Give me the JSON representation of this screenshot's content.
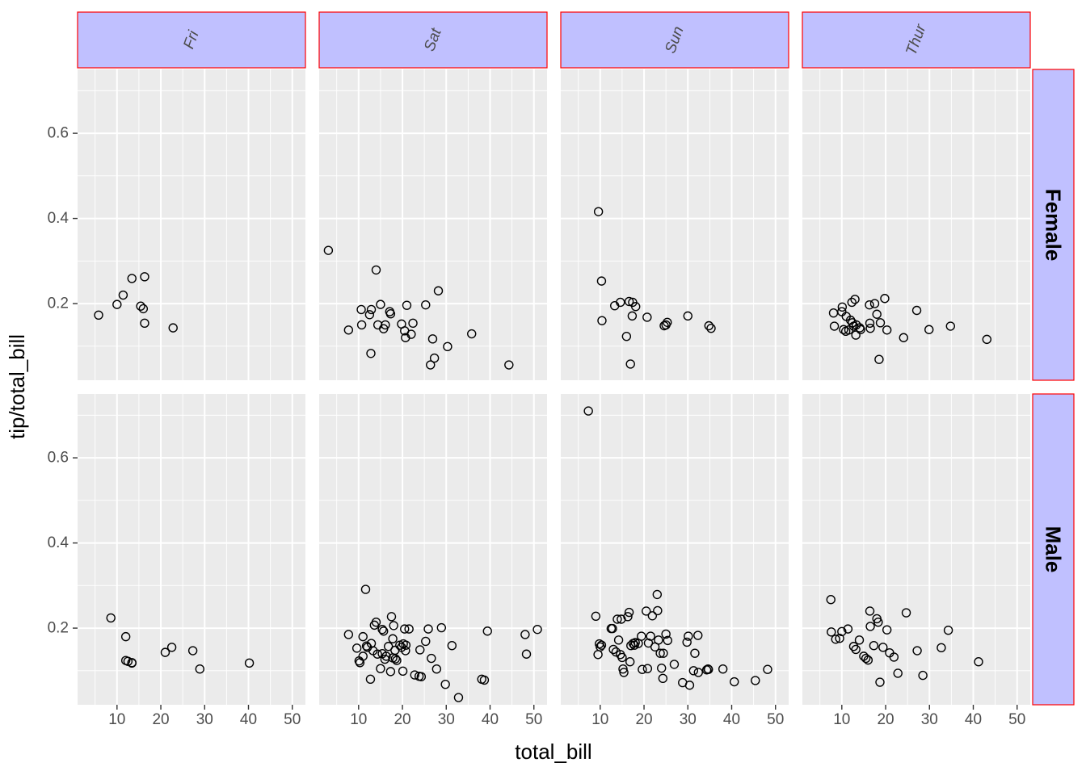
{
  "chart_data": {
    "type": "scatter",
    "xlabel": "total_bill",
    "ylabel": "tip/total_bill",
    "xlim": [
      1,
      53
    ],
    "ylim": [
      0.02,
      0.75
    ],
    "x_ticks": [
      10,
      20,
      30,
      40,
      50
    ],
    "y_ticks": [
      0.2,
      0.4,
      0.6
    ],
    "x_tick_labels": [
      "10",
      "20",
      "30",
      "40",
      "50"
    ],
    "y_tick_labels": [
      "0.2",
      "0.4",
      "0.6"
    ],
    "grid": true,
    "col_facets": [
      "Fri",
      "Sat",
      "Sun",
      "Thur"
    ],
    "row_facets": [
      "Female",
      "Male"
    ],
    "colors": {
      "panel_bg": "#ebebeb",
      "grid": "#ffffff",
      "strip_fill": "#c0c0ff",
      "strip_border": "#ff0000",
      "point_stroke": "#000000",
      "text": "#4d4d4d",
      "title_text": "#000000"
    },
    "panels": [
      {
        "col": "Fri",
        "row": "Female",
        "points": [
          [
            5.8,
            0.173
          ],
          [
            10.0,
            0.198
          ],
          [
            11.4,
            0.22
          ],
          [
            13.4,
            0.259
          ],
          [
            15.4,
            0.194
          ],
          [
            16.0,
            0.188
          ],
          [
            16.3,
            0.263
          ],
          [
            16.3,
            0.154
          ],
          [
            22.8,
            0.143
          ]
        ]
      },
      {
        "col": "Sat",
        "row": "Female",
        "points": [
          [
            3.1,
            0.325
          ],
          [
            7.7,
            0.138
          ],
          [
            10.6,
            0.186
          ],
          [
            10.7,
            0.15
          ],
          [
            12.5,
            0.174
          ],
          [
            12.9,
            0.186
          ],
          [
            12.8,
            0.083
          ],
          [
            14.0,
            0.279
          ],
          [
            14.4,
            0.15
          ],
          [
            15.0,
            0.198
          ],
          [
            15.7,
            0.141
          ],
          [
            16.1,
            0.15
          ],
          [
            17.1,
            0.181
          ],
          [
            17.3,
            0.176
          ],
          [
            19.8,
            0.152
          ],
          [
            20.5,
            0.136
          ],
          [
            20.7,
            0.12
          ],
          [
            21.0,
            0.196
          ],
          [
            22.0,
            0.128
          ],
          [
            22.4,
            0.154
          ],
          [
            25.3,
            0.197
          ],
          [
            26.4,
            0.056
          ],
          [
            26.9,
            0.117
          ],
          [
            27.3,
            0.072
          ],
          [
            28.2,
            0.23
          ],
          [
            30.3,
            0.099
          ],
          [
            35.8,
            0.129
          ],
          [
            44.3,
            0.056
          ]
        ]
      },
      {
        "col": "Sun",
        "row": "Female",
        "points": [
          [
            9.6,
            0.416
          ],
          [
            10.3,
            0.253
          ],
          [
            10.4,
            0.16
          ],
          [
            13.3,
            0.195
          ],
          [
            14.6,
            0.203
          ],
          [
            16.0,
            0.123
          ],
          [
            16.6,
            0.205
          ],
          [
            16.9,
            0.058
          ],
          [
            17.3,
            0.171
          ],
          [
            17.4,
            0.203
          ],
          [
            18.1,
            0.193
          ],
          [
            20.7,
            0.168
          ],
          [
            24.6,
            0.148
          ],
          [
            25.0,
            0.15
          ],
          [
            25.3,
            0.156
          ],
          [
            30.0,
            0.171
          ],
          [
            34.8,
            0.148
          ],
          [
            35.3,
            0.142
          ]
        ]
      },
      {
        "col": "Thur",
        "row": "Female",
        "points": [
          [
            8.1,
            0.178
          ],
          [
            8.3,
            0.147
          ],
          [
            10.0,
            0.181
          ],
          [
            10.1,
            0.192
          ],
          [
            10.4,
            0.139
          ],
          [
            10.9,
            0.135
          ],
          [
            11.0,
            0.17
          ],
          [
            11.6,
            0.138
          ],
          [
            12.0,
            0.161
          ],
          [
            12.3,
            0.203
          ],
          [
            12.4,
            0.155
          ],
          [
            12.7,
            0.147
          ],
          [
            13.0,
            0.21
          ],
          [
            13.2,
            0.126
          ],
          [
            13.3,
            0.15
          ],
          [
            14.1,
            0.143
          ],
          [
            14.3,
            0.139
          ],
          [
            16.3,
            0.197
          ],
          [
            16.4,
            0.154
          ],
          [
            16.5,
            0.142
          ],
          [
            17.5,
            0.2
          ],
          [
            18.0,
            0.175
          ],
          [
            18.5,
            0.069
          ],
          [
            18.8,
            0.155
          ],
          [
            19.8,
            0.212
          ],
          [
            20.3,
            0.138
          ],
          [
            24.1,
            0.12
          ],
          [
            27.1,
            0.184
          ],
          [
            29.9,
            0.139
          ],
          [
            34.8,
            0.147
          ],
          [
            43.1,
            0.116
          ]
        ]
      },
      {
        "col": "Fri",
        "row": "Male",
        "points": [
          [
            8.6,
            0.224
          ],
          [
            12.0,
            0.18
          ],
          [
            12.0,
            0.124
          ],
          [
            12.5,
            0.122
          ],
          [
            13.4,
            0.119
          ],
          [
            13.4,
            0.118
          ],
          [
            21.0,
            0.143
          ],
          [
            22.5,
            0.155
          ],
          [
            27.3,
            0.147
          ],
          [
            28.9,
            0.104
          ],
          [
            40.2,
            0.118
          ]
        ]
      },
      {
        "col": "Sat",
        "row": "Male",
        "points": [
          [
            7.7,
            0.185
          ],
          [
            9.6,
            0.153
          ],
          [
            10.1,
            0.123
          ],
          [
            10.3,
            0.119
          ],
          [
            11.0,
            0.134
          ],
          [
            11.0,
            0.18
          ],
          [
            11.6,
            0.291
          ],
          [
            11.8,
            0.158
          ],
          [
            12.0,
            0.155
          ],
          [
            12.7,
            0.08
          ],
          [
            12.9,
            0.164
          ],
          [
            13.3,
            0.147
          ],
          [
            13.6,
            0.207
          ],
          [
            14.0,
            0.214
          ],
          [
            14.3,
            0.139
          ],
          [
            15.0,
            0.105
          ],
          [
            15.4,
            0.14
          ],
          [
            15.4,
            0.197
          ],
          [
            15.7,
            0.193
          ],
          [
            16.0,
            0.127
          ],
          [
            16.3,
            0.134
          ],
          [
            16.8,
            0.157
          ],
          [
            17.3,
            0.098
          ],
          [
            17.5,
            0.227
          ],
          [
            17.8,
            0.13
          ],
          [
            17.8,
            0.175
          ],
          [
            18.0,
            0.206
          ],
          [
            18.3,
            0.148
          ],
          [
            18.4,
            0.128
          ],
          [
            18.7,
            0.124
          ],
          [
            19.4,
            0.16
          ],
          [
            19.8,
            0.155
          ],
          [
            20.1,
            0.099
          ],
          [
            20.2,
            0.163
          ],
          [
            20.5,
            0.198
          ],
          [
            20.7,
            0.147
          ],
          [
            20.8,
            0.16
          ],
          [
            21.5,
            0.198
          ],
          [
            22.8,
            0.09
          ],
          [
            23.8,
            0.087
          ],
          [
            24.0,
            0.149
          ],
          [
            24.3,
            0.086
          ],
          [
            25.3,
            0.169
          ],
          [
            25.9,
            0.198
          ],
          [
            26.6,
            0.129
          ],
          [
            27.8,
            0.104
          ],
          [
            28.9,
            0.201
          ],
          [
            29.8,
            0.068
          ],
          [
            31.3,
            0.159
          ],
          [
            32.8,
            0.037
          ],
          [
            38.1,
            0.08
          ],
          [
            38.7,
            0.078
          ],
          [
            39.4,
            0.193
          ],
          [
            48.0,
            0.185
          ],
          [
            48.3,
            0.139
          ],
          [
            50.8,
            0.197
          ]
        ]
      },
      {
        "col": "Sun",
        "row": "Male",
        "points": [
          [
            7.3,
            0.71
          ],
          [
            9.0,
            0.228
          ],
          [
            9.5,
            0.138
          ],
          [
            9.8,
            0.163
          ],
          [
            10.0,
            0.156
          ],
          [
            10.3,
            0.16
          ],
          [
            12.5,
            0.199
          ],
          [
            12.8,
            0.199
          ],
          [
            13.0,
            0.15
          ],
          [
            13.6,
            0.144
          ],
          [
            13.9,
            0.221
          ],
          [
            14.2,
            0.172
          ],
          [
            14.6,
            0.138
          ],
          [
            14.8,
            0.221
          ],
          [
            15.0,
            0.131
          ],
          [
            15.2,
            0.104
          ],
          [
            15.4,
            0.096
          ],
          [
            16.3,
            0.227
          ],
          [
            16.6,
            0.237
          ],
          [
            16.8,
            0.121
          ],
          [
            17.0,
            0.159
          ],
          [
            17.5,
            0.164
          ],
          [
            17.8,
            0.16
          ],
          [
            18.0,
            0.166
          ],
          [
            18.7,
            0.164
          ],
          [
            19.4,
            0.181
          ],
          [
            19.6,
            0.103
          ],
          [
            20.5,
            0.24
          ],
          [
            20.8,
            0.105
          ],
          [
            21.0,
            0.165
          ],
          [
            21.5,
            0.181
          ],
          [
            21.9,
            0.229
          ],
          [
            22.5,
            0.156
          ],
          [
            23.0,
            0.279
          ],
          [
            23.1,
            0.241
          ],
          [
            23.3,
            0.172
          ],
          [
            23.7,
            0.141
          ],
          [
            24.0,
            0.106
          ],
          [
            24.3,
            0.082
          ],
          [
            24.4,
            0.141
          ],
          [
            25.0,
            0.186
          ],
          [
            25.4,
            0.171
          ],
          [
            26.9,
            0.115
          ],
          [
            28.8,
            0.072
          ],
          [
            29.8,
            0.167
          ],
          [
            30.1,
            0.181
          ],
          [
            30.4,
            0.066
          ],
          [
            31.3,
            0.1
          ],
          [
            31.6,
            0.141
          ],
          [
            32.3,
            0.183
          ],
          [
            32.4,
            0.096
          ],
          [
            34.3,
            0.102
          ],
          [
            34.6,
            0.104
          ],
          [
            34.7,
            0.103
          ],
          [
            38.0,
            0.104
          ],
          [
            40.6,
            0.074
          ],
          [
            45.4,
            0.077
          ],
          [
            48.2,
            0.103
          ]
        ]
      },
      {
        "col": "Thur",
        "row": "Male",
        "points": [
          [
            7.5,
            0.267
          ],
          [
            7.6,
            0.191
          ],
          [
            8.6,
            0.174
          ],
          [
            9.5,
            0.176
          ],
          [
            10.0,
            0.192
          ],
          [
            11.4,
            0.198
          ],
          [
            12.7,
            0.157
          ],
          [
            13.2,
            0.15
          ],
          [
            14.0,
            0.172
          ],
          [
            15.0,
            0.134
          ],
          [
            15.5,
            0.129
          ],
          [
            16.0,
            0.125
          ],
          [
            16.4,
            0.24
          ],
          [
            16.5,
            0.204
          ],
          [
            17.3,
            0.159
          ],
          [
            18.0,
            0.222
          ],
          [
            18.3,
            0.214
          ],
          [
            18.7,
            0.073
          ],
          [
            19.4,
            0.155
          ],
          [
            20.3,
            0.196
          ],
          [
            20.9,
            0.142
          ],
          [
            21.9,
            0.132
          ],
          [
            22.8,
            0.094
          ],
          [
            24.7,
            0.236
          ],
          [
            27.2,
            0.147
          ],
          [
            28.5,
            0.089
          ],
          [
            32.7,
            0.154
          ],
          [
            34.3,
            0.195
          ],
          [
            41.2,
            0.121
          ]
        ]
      }
    ]
  }
}
